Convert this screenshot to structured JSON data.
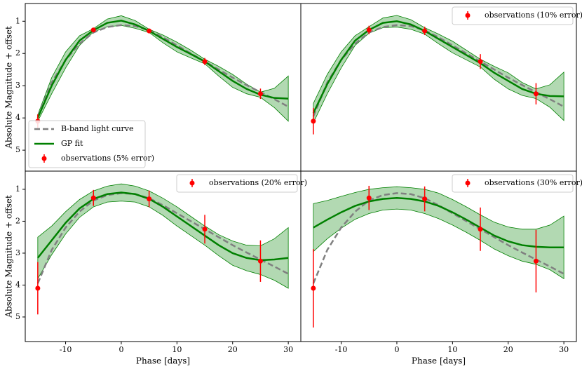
{
  "chart_data": [
    {
      "type": "line",
      "ylabel": "Absolute Magnitude + offset",
      "legend": "lower left",
      "xlim": [
        -17.25,
        32.25
      ],
      "ylim": [
        5.65,
        0.45
      ],
      "yticks": [
        1,
        2,
        3,
        4,
        5
      ],
      "x": [
        -15,
        -12.5,
        -10,
        -7.5,
        -5,
        -2.5,
        0,
        2.5,
        5,
        7.5,
        10,
        12.5,
        15,
        17.5,
        20,
        22.5,
        25,
        27.5,
        30
      ],
      "series": [
        {
          "name": "B-band light curve",
          "color": "#808080",
          "dashed": true,
          "values": [
            3.95,
            2.9,
            2.2,
            1.7,
            1.35,
            1.18,
            1.12,
            1.15,
            1.28,
            1.5,
            1.75,
            2.0,
            2.25,
            2.5,
            2.75,
            2.98,
            3.2,
            3.42,
            3.65
          ]
        },
        {
          "name": "GP fit",
          "color": "#008000",
          "values": [
            4.0,
            3.0,
            2.2,
            1.6,
            1.28,
            1.05,
            0.98,
            1.1,
            1.3,
            1.55,
            1.8,
            2.02,
            2.25,
            2.55,
            2.85,
            3.1,
            3.28,
            3.38,
            3.4
          ]
        }
      ],
      "band": {
        "color": "#008000",
        "lower": [
          3.9,
          2.75,
          1.95,
          1.45,
          1.23,
          0.93,
          0.83,
          0.98,
          1.25,
          1.43,
          1.65,
          1.9,
          2.18,
          2.4,
          2.65,
          2.95,
          3.2,
          3.08,
          2.7
        ],
        "upper": [
          4.1,
          3.25,
          2.45,
          1.75,
          1.33,
          1.17,
          1.13,
          1.22,
          1.35,
          1.67,
          1.95,
          2.14,
          2.32,
          2.7,
          3.05,
          3.25,
          3.36,
          3.68,
          4.1
        ]
      },
      "observations": {
        "name": "observations (5% error)",
        "color": "#ff0000",
        "x": [
          -15,
          -5,
          5,
          15,
          25
        ],
        "values": [
          4.1,
          1.27,
          1.3,
          2.25,
          3.25
        ],
        "errors": [
          0.21,
          0.06,
          0.07,
          0.11,
          0.16
        ]
      }
    },
    {
      "type": "line",
      "legend": "upper right",
      "xlim": [
        -17.25,
        32.25
      ],
      "ylim": [
        5.65,
        0.45
      ],
      "x": [
        -15,
        -12.5,
        -10,
        -7.5,
        -5,
        -2.5,
        0,
        2.5,
        5,
        7.5,
        10,
        12.5,
        15,
        17.5,
        20,
        22.5,
        25,
        27.5,
        30
      ],
      "series": [
        {
          "color": "#808080",
          "dashed": true,
          "values": [
            3.95,
            2.9,
            2.2,
            1.7,
            1.35,
            1.18,
            1.12,
            1.15,
            1.28,
            1.5,
            1.75,
            2.0,
            2.25,
            2.5,
            2.75,
            2.98,
            3.2,
            3.42,
            3.65
          ]
        },
        {
          "color": "#008000",
          "values": [
            3.85,
            2.95,
            2.2,
            1.6,
            1.27,
            1.05,
            1.0,
            1.1,
            1.3,
            1.55,
            1.8,
            2.05,
            2.3,
            2.6,
            2.85,
            3.1,
            3.25,
            3.32,
            3.33
          ]
        }
      ],
      "band": {
        "color": "#008000",
        "lower": [
          3.55,
          2.65,
          1.95,
          1.45,
          1.17,
          0.9,
          0.82,
          0.95,
          1.2,
          1.4,
          1.62,
          1.9,
          2.18,
          2.4,
          2.6,
          2.9,
          3.1,
          2.97,
          2.58
        ],
        "upper": [
          4.15,
          3.25,
          2.45,
          1.75,
          1.37,
          1.2,
          1.18,
          1.25,
          1.4,
          1.7,
          1.98,
          2.2,
          2.42,
          2.8,
          3.1,
          3.3,
          3.4,
          3.67,
          4.08
        ]
      },
      "observations": {
        "name": "observations (10% error)",
        "color": "#ff0000",
        "x": [
          -15,
          -5,
          5,
          15,
          25
        ],
        "values": [
          4.1,
          1.27,
          1.3,
          2.25,
          3.25
        ],
        "errors": [
          0.41,
          0.13,
          0.13,
          0.23,
          0.33
        ]
      }
    },
    {
      "type": "line",
      "ylabel": "Absolute Magnitude + offset",
      "xlabel": "Phase [days]",
      "legend": "upper right",
      "xlim": [
        -17.25,
        32.25
      ],
      "ylim": [
        5.77,
        0.43
      ],
      "yticks": [
        1,
        2,
        3,
        4,
        5
      ],
      "xticks": [
        -10,
        0,
        10,
        20,
        30
      ],
      "x": [
        -15,
        -12.5,
        -10,
        -7.5,
        -5,
        -2.5,
        0,
        2.5,
        5,
        7.5,
        10,
        12.5,
        15,
        17.5,
        20,
        22.5,
        25,
        27.5,
        30
      ],
      "series": [
        {
          "color": "#808080",
          "dashed": true,
          "values": [
            3.95,
            2.9,
            2.2,
            1.7,
            1.35,
            1.18,
            1.12,
            1.15,
            1.28,
            1.5,
            1.75,
            2.0,
            2.25,
            2.5,
            2.75,
            2.98,
            3.2,
            3.42,
            3.65
          ]
        },
        {
          "color": "#008000",
          "values": [
            3.15,
            2.6,
            2.05,
            1.6,
            1.3,
            1.15,
            1.1,
            1.15,
            1.3,
            1.55,
            1.85,
            2.15,
            2.45,
            2.75,
            3.0,
            3.15,
            3.22,
            3.2,
            3.15
          ]
        }
      ],
      "band": {
        "color": "#008000",
        "lower": [
          2.5,
          2.15,
          1.7,
          1.32,
          1.05,
          0.9,
          0.83,
          0.9,
          1.05,
          1.28,
          1.55,
          1.85,
          2.15,
          2.42,
          2.62,
          2.75,
          2.77,
          2.55,
          2.2
        ],
        "upper": [
          3.8,
          3.05,
          2.4,
          1.88,
          1.55,
          1.4,
          1.37,
          1.4,
          1.55,
          1.82,
          2.15,
          2.45,
          2.75,
          3.08,
          3.38,
          3.55,
          3.67,
          3.85,
          4.1
        ]
      },
      "observations": {
        "name": "observations (20% error)",
        "color": "#ff0000",
        "x": [
          -15,
          -5,
          5,
          15,
          25
        ],
        "values": [
          4.1,
          1.27,
          1.3,
          2.25,
          3.25
        ],
        "errors": [
          0.82,
          0.25,
          0.26,
          0.45,
          0.65
        ]
      }
    },
    {
      "type": "line",
      "xlabel": "Phase [days]",
      "legend": "upper right",
      "xlim": [
        -17.25,
        32.25
      ],
      "ylim": [
        5.77,
        0.43
      ],
      "xticks": [
        -10,
        0,
        10,
        20,
        30
      ],
      "x": [
        -15,
        -12.5,
        -10,
        -7.5,
        -5,
        -2.5,
        0,
        2.5,
        5,
        7.5,
        10,
        12.5,
        15,
        17.5,
        20,
        22.5,
        25,
        27.5,
        30
      ],
      "series": [
        {
          "color": "#808080",
          "dashed": true,
          "values": [
            3.95,
            2.9,
            2.2,
            1.7,
            1.35,
            1.18,
            1.12,
            1.15,
            1.28,
            1.5,
            1.75,
            2.0,
            2.25,
            2.5,
            2.75,
            2.98,
            3.2,
            3.42,
            3.65
          ]
        },
        {
          "color": "#008000",
          "values": [
            2.2,
            1.95,
            1.72,
            1.52,
            1.38,
            1.3,
            1.27,
            1.3,
            1.38,
            1.52,
            1.72,
            1.95,
            2.2,
            2.45,
            2.63,
            2.75,
            2.8,
            2.82,
            2.82
          ]
        }
      ],
      "band": {
        "color": "#008000",
        "lower": [
          1.45,
          1.35,
          1.22,
          1.1,
          1.0,
          0.95,
          0.92,
          0.95,
          1.0,
          1.12,
          1.32,
          1.55,
          1.8,
          2.03,
          2.18,
          2.25,
          2.25,
          2.12,
          1.84
        ],
        "upper": [
          2.95,
          2.55,
          2.22,
          1.94,
          1.76,
          1.65,
          1.62,
          1.65,
          1.76,
          1.92,
          2.12,
          2.35,
          2.6,
          2.87,
          3.08,
          3.25,
          3.35,
          3.52,
          3.8
        ]
      },
      "observations": {
        "name": "observations (30% error)",
        "color": "#ff0000",
        "x": [
          -15,
          -5,
          5,
          15,
          25
        ],
        "values": [
          4.1,
          1.27,
          1.3,
          2.25,
          3.25
        ],
        "errors": [
          1.23,
          0.38,
          0.39,
          0.68,
          0.98
        ]
      }
    }
  ]
}
